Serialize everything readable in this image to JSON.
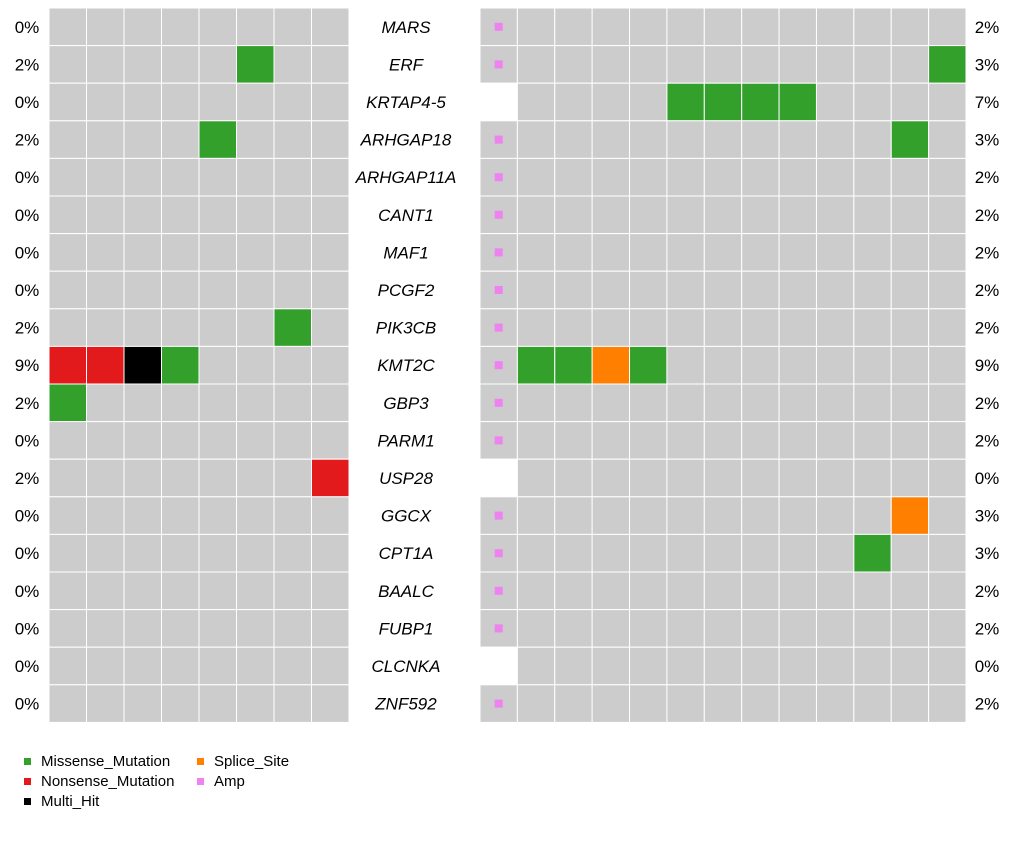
{
  "chart_data": {
    "type": "heatmap",
    "subtype": "co-oncoplot",
    "genes": [
      "MARS",
      "ERF",
      "KRTAP4-5",
      "ARHGAP18",
      "ARHGAP11A",
      "CANT1",
      "MAF1",
      "PCGF2",
      "PIK3CB",
      "KMT2C",
      "GBP3",
      "PARM1",
      "USP28",
      "GGCX",
      "CPT1A",
      "BAALC",
      "FUBP1",
      "CLCNKA",
      "ZNF592"
    ],
    "left_percent": [
      "0%",
      "2%",
      "0%",
      "2%",
      "0%",
      "0%",
      "0%",
      "0%",
      "2%",
      "9%",
      "2%",
      "0%",
      "2%",
      "0%",
      "0%",
      "0%",
      "0%",
      "0%",
      "0%"
    ],
    "right_percent": [
      "2%",
      "3%",
      "7%",
      "3%",
      "2%",
      "2%",
      "2%",
      "2%",
      "2%",
      "9%",
      "2%",
      "2%",
      "0%",
      "3%",
      "3%",
      "2%",
      "2%",
      "0%",
      "2%"
    ],
    "left_cohort": {
      "n_samples": 8,
      "mutations": [
        {
          "gene": "ERF",
          "sample": 5,
          "type": "Missense_Mutation"
        },
        {
          "gene": "ARHGAP18",
          "sample": 4,
          "type": "Missense_Mutation"
        },
        {
          "gene": "PIK3CB",
          "sample": 6,
          "type": "Missense_Mutation"
        },
        {
          "gene": "KMT2C",
          "sample": 0,
          "type": "Nonsense_Mutation"
        },
        {
          "gene": "KMT2C",
          "sample": 1,
          "type": "Nonsense_Mutation"
        },
        {
          "gene": "KMT2C",
          "sample": 2,
          "type": "Multi_Hit"
        },
        {
          "gene": "KMT2C",
          "sample": 3,
          "type": "Missense_Mutation"
        },
        {
          "gene": "GBP3",
          "sample": 0,
          "type": "Missense_Mutation"
        },
        {
          "gene": "USP28",
          "sample": 7,
          "type": "Nonsense_Mutation"
        }
      ]
    },
    "right_cohort": {
      "n_samples": 13,
      "mutations": [
        {
          "gene": "ERF",
          "sample": 12,
          "type": "Missense_Mutation"
        },
        {
          "gene": "KRTAP4-5",
          "sample": 5,
          "type": "Missense_Mutation"
        },
        {
          "gene": "KRTAP4-5",
          "sample": 6,
          "type": "Missense_Mutation"
        },
        {
          "gene": "KRTAP4-5",
          "sample": 7,
          "type": "Missense_Mutation"
        },
        {
          "gene": "KRTAP4-5",
          "sample": 8,
          "type": "Missense_Mutation"
        },
        {
          "gene": "ARHGAP18",
          "sample": 11,
          "type": "Missense_Mutation"
        },
        {
          "gene": "KMT2C",
          "sample": 1,
          "type": "Missense_Mutation"
        },
        {
          "gene": "KMT2C",
          "sample": 2,
          "type": "Missense_Mutation"
        },
        {
          "gene": "KMT2C",
          "sample": 3,
          "type": "Splice_Site"
        },
        {
          "gene": "KMT2C",
          "sample": 4,
          "type": "Missense_Mutation"
        },
        {
          "gene": "GGCX",
          "sample": 11,
          "type": "Splice_Site"
        },
        {
          "gene": "CPT1A",
          "sample": 10,
          "type": "Missense_Mutation"
        }
      ],
      "amp_sample": 0,
      "amp_genes": [
        "MARS",
        "ERF",
        "ARHGAP18",
        "ARHGAP11A",
        "CANT1",
        "MAF1",
        "PCGF2",
        "PIK3CB",
        "KMT2C",
        "GBP3",
        "PARM1",
        "GGCX",
        "CPT1A",
        "BAALC",
        "FUBP1",
        "ZNF592"
      ],
      "blank_first_sample_genes": [
        "KRTAP4-5",
        "USP28",
        "CLCNKA"
      ]
    },
    "colors": {
      "background_cell": "#cccccc",
      "Missense_Mutation": "#33a02c",
      "Nonsense_Mutation": "#e31a1c",
      "Multi_Hit": "#000000",
      "Splice_Site": "#ff7f00",
      "Amp": "#ee82ee"
    },
    "legend": [
      {
        "label": "Missense_Mutation",
        "type": "Missense_Mutation"
      },
      {
        "label": "Splice_Site",
        "type": "Splice_Site"
      },
      {
        "label": "Nonsense_Mutation",
        "type": "Nonsense_Mutation"
      },
      {
        "label": "Amp",
        "type": "Amp"
      },
      {
        "label": "Multi_Hit",
        "type": "Multi_Hit"
      }
    ]
  }
}
